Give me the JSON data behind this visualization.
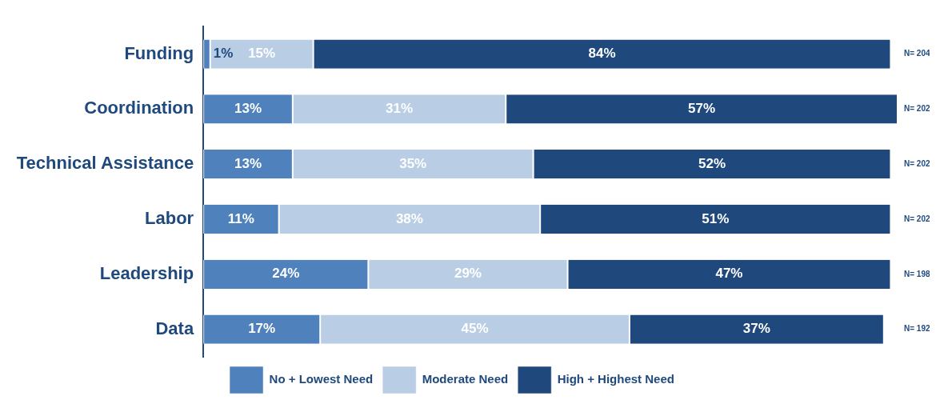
{
  "chart_data": {
    "type": "bar",
    "orientation": "horizontal",
    "stacked": true,
    "legend": "bottom",
    "categories": [
      "Funding",
      "Coordination",
      "Technical Assistance",
      "Labor",
      "Leadership",
      "Data"
    ],
    "series": [
      {
        "name": "No + Lowest Need",
        "color": "#4f81bd",
        "values": [
          1,
          13,
          13,
          11,
          24,
          17
        ],
        "value_labels": [
          "1%",
          "13%",
          "13%",
          "11%",
          "24%",
          "17%"
        ]
      },
      {
        "name": "Moderate Need",
        "color": "#b9cde5",
        "values": [
          15,
          31,
          35,
          38,
          29,
          45
        ],
        "value_labels": [
          "15%",
          "31%",
          "35%",
          "38%",
          "29%",
          "45%"
        ]
      },
      {
        "name": "High + Highest Need",
        "color": "#1f497d",
        "values": [
          84,
          57,
          52,
          51,
          47,
          37
        ],
        "value_labels": [
          "84%",
          "57%",
          "52%",
          "51%",
          "47%",
          "37%"
        ]
      }
    ],
    "annotations": [
      "N= 204",
      "N= 202",
      "N= 202",
      "N= 202",
      "N= 198",
      "N= 192"
    ]
  }
}
